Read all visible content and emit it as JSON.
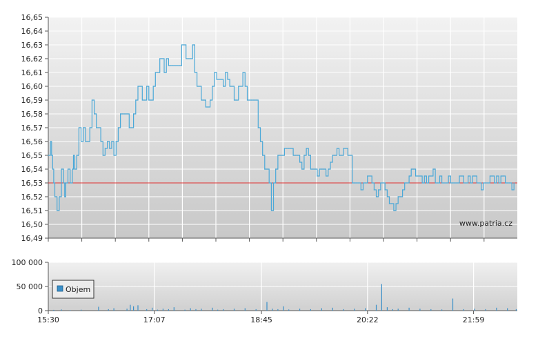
{
  "chart_data": [
    {
      "type": "line",
      "title": "",
      "ylim": [
        16.49,
        16.65
      ],
      "y_ticks": [
        "16,49",
        "16,50",
        "16,51",
        "16,52",
        "16,53",
        "16,54",
        "16,55",
        "16,56",
        "16,57",
        "16,58",
        "16,59",
        "16,60",
        "16,61",
        "16,62",
        "16,63",
        "16,64",
        "16,65"
      ],
      "reference_line": 16.53,
      "watermark": "www.patria.cz",
      "colors": {
        "line": "#4aa8d8",
        "reference": "#e03030"
      },
      "series": [
        {
          "x_minutes_from_open": [
            0,
            2,
            3,
            4,
            5,
            6,
            8,
            10,
            12,
            14,
            15,
            16,
            18,
            20,
            22,
            23,
            24,
            26,
            28,
            30,
            32,
            34,
            36,
            38,
            40,
            42,
            44,
            46,
            48,
            50,
            52,
            54,
            56,
            58,
            60,
            62,
            64,
            66,
            68,
            70,
            72,
            74,
            76,
            78,
            80,
            82,
            84,
            86,
            88,
            90,
            92,
            94,
            96,
            98,
            100,
            102,
            104,
            106,
            108,
            110,
            112,
            114,
            116,
            118,
            120,
            122,
            124,
            126,
            128,
            130,
            132,
            134,
            136,
            138,
            140,
            142,
            144,
            146,
            148,
            150,
            152,
            154,
            156,
            158,
            160,
            162,
            164,
            166,
            168,
            170,
            172,
            174,
            176,
            178,
            180,
            182,
            184,
            186,
            188,
            190,
            192,
            194,
            196,
            198,
            200,
            202,
            204,
            206,
            208,
            210,
            212,
            214,
            216,
            218,
            220,
            222,
            224,
            226,
            228,
            230,
            232,
            234,
            236,
            238,
            240,
            242,
            244,
            246,
            248,
            250,
            252,
            254,
            256,
            258,
            260,
            262,
            264,
            266,
            268,
            270,
            272,
            274,
            276,
            278,
            280,
            282,
            284,
            286,
            288,
            290,
            292,
            294,
            296,
            298,
            300,
            302,
            304,
            306,
            308,
            310,
            312,
            314,
            316,
            318,
            320,
            322,
            324,
            326,
            328,
            330,
            332,
            334,
            336,
            338,
            340,
            342,
            344,
            346,
            348,
            350,
            352,
            354,
            356,
            358,
            360,
            362,
            364,
            366,
            368,
            370,
            372,
            374,
            376,
            378,
            380,
            382,
            384,
            386,
            388,
            390,
            392,
            394,
            396,
            398,
            400,
            402,
            404,
            406,
            408,
            410,
            412,
            414,
            416,
            418,
            420,
            422,
            424,
            426,
            428,
            429
          ],
          "values": [
            16.55,
            16.56,
            16.55,
            16.54,
            16.53,
            16.52,
            16.51,
            16.52,
            16.54,
            16.53,
            16.52,
            16.53,
            16.54,
            16.53,
            16.54,
            16.55,
            16.54,
            16.55,
            16.57,
            16.56,
            16.57,
            16.56,
            16.56,
            16.57,
            16.59,
            16.58,
            16.57,
            16.57,
            16.56,
            16.55,
            16.555,
            16.56,
            16.555,
            16.56,
            16.55,
            16.56,
            16.57,
            16.58,
            16.58,
            16.58,
            16.58,
            16.57,
            16.57,
            16.58,
            16.59,
            16.6,
            16.6,
            16.59,
            16.59,
            16.6,
            16.59,
            16.59,
            16.6,
            16.61,
            16.61,
            16.62,
            16.62,
            16.61,
            16.62,
            16.615,
            16.615,
            16.615,
            16.615,
            16.615,
            16.615,
            16.63,
            16.63,
            16.62,
            16.62,
            16.62,
            16.63,
            16.61,
            16.6,
            16.6,
            16.59,
            16.59,
            16.585,
            16.585,
            16.59,
            16.6,
            16.61,
            16.605,
            16.605,
            16.605,
            16.6,
            16.61,
            16.605,
            16.6,
            16.6,
            16.59,
            16.59,
            16.6,
            16.6,
            16.61,
            16.6,
            16.59,
            16.59,
            16.59,
            16.59,
            16.59,
            16.57,
            16.56,
            16.55,
            16.54,
            16.54,
            16.53,
            16.51,
            16.53,
            16.54,
            16.55,
            16.55,
            16.55,
            16.555,
            16.555,
            16.555,
            16.555,
            16.55,
            16.55,
            16.55,
            16.545,
            16.54,
            16.55,
            16.555,
            16.55,
            16.54,
            16.54,
            16.54,
            16.535,
            16.54,
            16.54,
            16.54,
            16.535,
            16.54,
            16.545,
            16.55,
            16.55,
            16.555,
            16.55,
            16.55,
            16.555,
            16.555,
            16.55,
            16.55,
            16.53,
            16.53,
            16.53,
            16.53,
            16.525,
            16.53,
            16.53,
            16.535,
            16.535,
            16.53,
            16.525,
            16.52,
            16.525,
            16.53,
            16.53,
            16.525,
            16.52,
            16.515,
            16.515,
            16.51,
            16.515,
            16.52,
            16.52,
            16.525,
            16.53,
            16.53,
            16.535,
            16.54,
            16.54,
            16.535,
            16.535,
            16.535,
            16.53,
            16.535,
            16.53,
            16.535,
            16.535,
            16.54,
            16.53,
            16.53,
            16.535,
            16.53,
            16.53,
            16.53,
            16.535,
            16.53,
            16.53,
            16.53,
            16.53,
            16.535,
            16.535,
            16.53,
            16.53,
            16.535,
            16.53,
            16.535,
            16.535,
            16.53,
            16.53,
            16.525,
            16.53,
            16.53,
            16.53,
            16.535,
            16.535,
            16.53,
            16.535,
            16.53,
            16.535,
            16.535,
            16.53,
            16.53,
            16.53,
            16.525,
            16.53
          ]
        }
      ],
      "x_ticks": [
        "15:30",
        "17:07",
        "18:45",
        "20:22",
        "21:59"
      ]
    },
    {
      "type": "bar",
      "ylim": [
        0,
        100000
      ],
      "y_ticks": [
        "0",
        "50 000",
        "100 000"
      ],
      "legend": "Objem",
      "colors": {
        "bar": "#3a8fc8"
      },
      "series": [
        {
          "name": "Objem",
          "x_minutes_from_open": [
            5,
            12,
            20,
            30,
            46,
            55,
            60,
            72,
            75,
            78,
            82,
            90,
            95,
            100,
            105,
            110,
            115,
            125,
            130,
            135,
            140,
            150,
            155,
            160,
            170,
            180,
            190,
            200,
            205,
            210,
            215,
            220,
            230,
            240,
            250,
            260,
            270,
            280,
            290,
            300,
            305,
            310,
            315,
            320,
            330,
            340,
            350,
            360,
            370,
            380,
            390,
            400,
            410,
            420,
            428
          ],
          "values": [
            1500,
            2500,
            1000,
            2000,
            8000,
            3000,
            5000,
            4000,
            12000,
            9000,
            11000,
            3000,
            6000,
            2000,
            4000,
            3000,
            7000,
            2000,
            5000,
            3000,
            4000,
            6000,
            2000,
            3000,
            4000,
            5000,
            3000,
            18000,
            4000,
            3000,
            9000,
            2500,
            4000,
            3000,
            5000,
            6000,
            3000,
            4000,
            5000,
            12000,
            55000,
            7000,
            3000,
            4000,
            6000,
            4000,
            3000,
            2500,
            25000,
            3000,
            4000,
            3000,
            6000,
            5000,
            3000
          ]
        }
      ]
    }
  ]
}
